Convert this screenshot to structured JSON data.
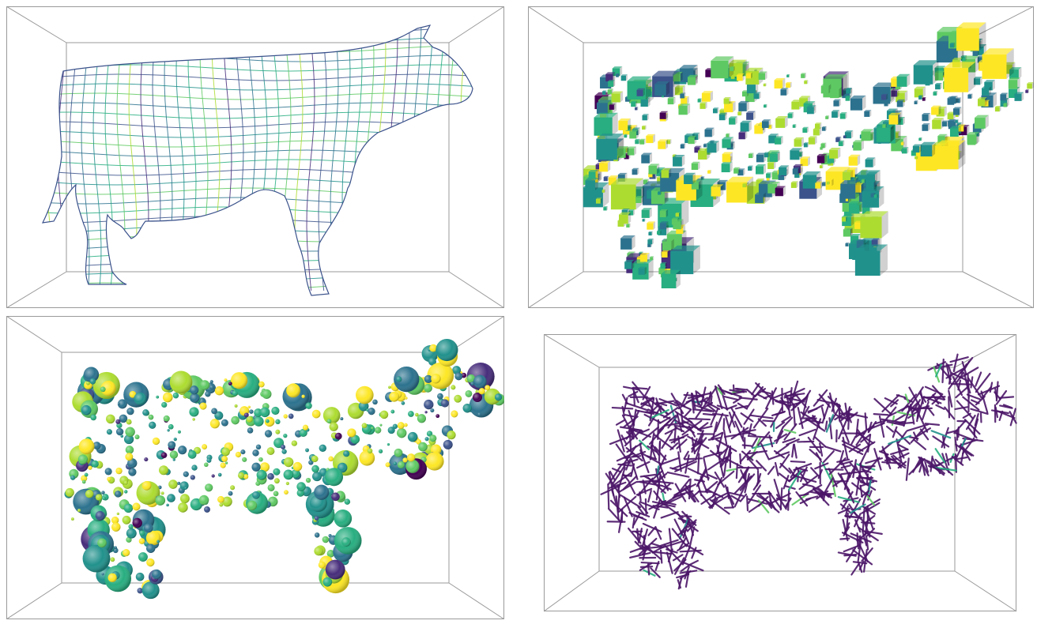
{
  "colors": {
    "background": "#ffffff",
    "box": "#9a9a9a",
    "viridis": [
      "#440154",
      "#472d7b",
      "#3b528b",
      "#2c728e",
      "#21918c",
      "#28ae80",
      "#5ec962",
      "#addc30",
      "#fde725"
    ],
    "glyph": "#4b1668"
  },
  "panels": [
    {
      "render": "wireframe-mesh"
    },
    {
      "render": "cube-glyphs"
    },
    {
      "render": "sphere-glyphs"
    },
    {
      "render": "line-glyphs"
    }
  ]
}
